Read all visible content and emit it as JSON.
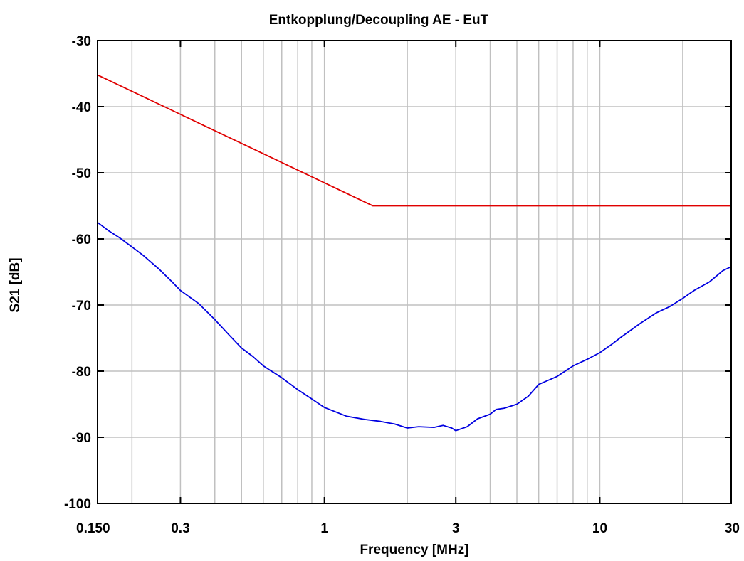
{
  "chart_data": {
    "type": "line",
    "title": "Entkopplung/Decoupling AE - EuT",
    "xlabel": "Frequency [MHz]",
    "ylabel": "S21 [dB]",
    "x_scale": "log",
    "xlim": [
      0.15,
      30
    ],
    "ylim": [
      -100,
      -30
    ],
    "grid": true,
    "x_ticks": [
      0.15,
      0.3,
      1,
      3,
      10,
      30
    ],
    "x_tick_labels": [
      "0.150",
      "0.3",
      "1",
      "3",
      "10",
      "30"
    ],
    "x_minor_grid": [
      0.2,
      0.3,
      0.4,
      0.5,
      0.6,
      0.7,
      0.8,
      0.9,
      1,
      2,
      3,
      4,
      5,
      6,
      7,
      8,
      9,
      10,
      20
    ],
    "y_ticks": [
      -100,
      -90,
      -80,
      -70,
      -60,
      -50,
      -40,
      -30
    ],
    "y_tick_labels": [
      "-100",
      "-90",
      "-80",
      "-70",
      "-60",
      "-50",
      "-40",
      "-30"
    ],
    "series": [
      {
        "color": "#e00000",
        "x": [
          0.15,
          1.5,
          30
        ],
        "y": [
          -35.2,
          -55,
          -55
        ]
      },
      {
        "color": "#0000e0",
        "x": [
          0.15,
          0.165,
          0.18,
          0.2,
          0.22,
          0.25,
          0.28,
          0.3,
          0.35,
          0.4,
          0.45,
          0.5,
          0.55,
          0.6,
          0.7,
          0.8,
          0.9,
          1.0,
          1.2,
          1.4,
          1.6,
          1.8,
          2.0,
          2.2,
          2.5,
          2.7,
          2.9,
          3.0,
          3.3,
          3.6,
          4.0,
          4.2,
          4.5,
          5.0,
          5.5,
          6.0,
          7.0,
          8.0,
          9.0,
          10,
          11,
          12,
          14,
          16,
          18,
          20,
          22,
          25,
          28,
          30
        ],
        "y": [
          -57.5,
          -58.8,
          -59.8,
          -61.2,
          -62.5,
          -64.5,
          -66.5,
          -67.8,
          -69.8,
          -72.2,
          -74.5,
          -76.5,
          -77.8,
          -79.2,
          -81.0,
          -82.8,
          -84.2,
          -85.5,
          -86.8,
          -87.3,
          -87.6,
          -88.0,
          -88.6,
          -88.4,
          -88.5,
          -88.2,
          -88.6,
          -89.0,
          -88.4,
          -87.2,
          -86.5,
          -85.8,
          -85.6,
          -85.0,
          -83.8,
          -82.0,
          -80.8,
          -79.2,
          -78.2,
          -77.2,
          -76.0,
          -74.8,
          -72.8,
          -71.2,
          -70.2,
          -69.0,
          -67.8,
          -66.5,
          -64.8,
          -64.2
        ]
      }
    ]
  }
}
